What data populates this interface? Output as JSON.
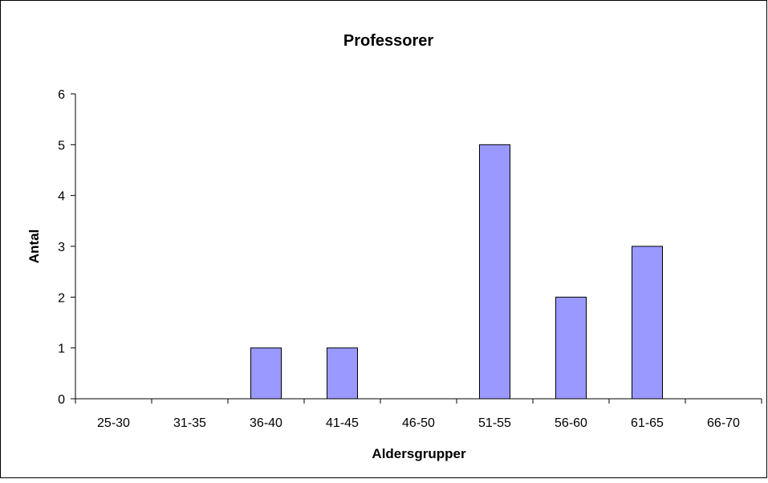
{
  "chart_data": {
    "type": "bar",
    "title": "Professorer",
    "xlabel": "Aldersgrupper",
    "ylabel": "Antal",
    "categories": [
      "25-30",
      "31-35",
      "36-40",
      "41-45",
      "46-50",
      "51-55",
      "56-60",
      "61-65",
      "66-70"
    ],
    "values": [
      0,
      0,
      1,
      1,
      0,
      5,
      2,
      3,
      0
    ],
    "ylim": [
      0,
      6
    ],
    "yticks": [
      "0",
      "1",
      "2",
      "3",
      "4",
      "5",
      "6"
    ],
    "grid": false,
    "legend": "none",
    "bar_color": "#9999ff",
    "bar_edge_color": "#000000",
    "axis_color": "#000000",
    "frame_color": "#000000",
    "background_color": "#ffffff"
  }
}
